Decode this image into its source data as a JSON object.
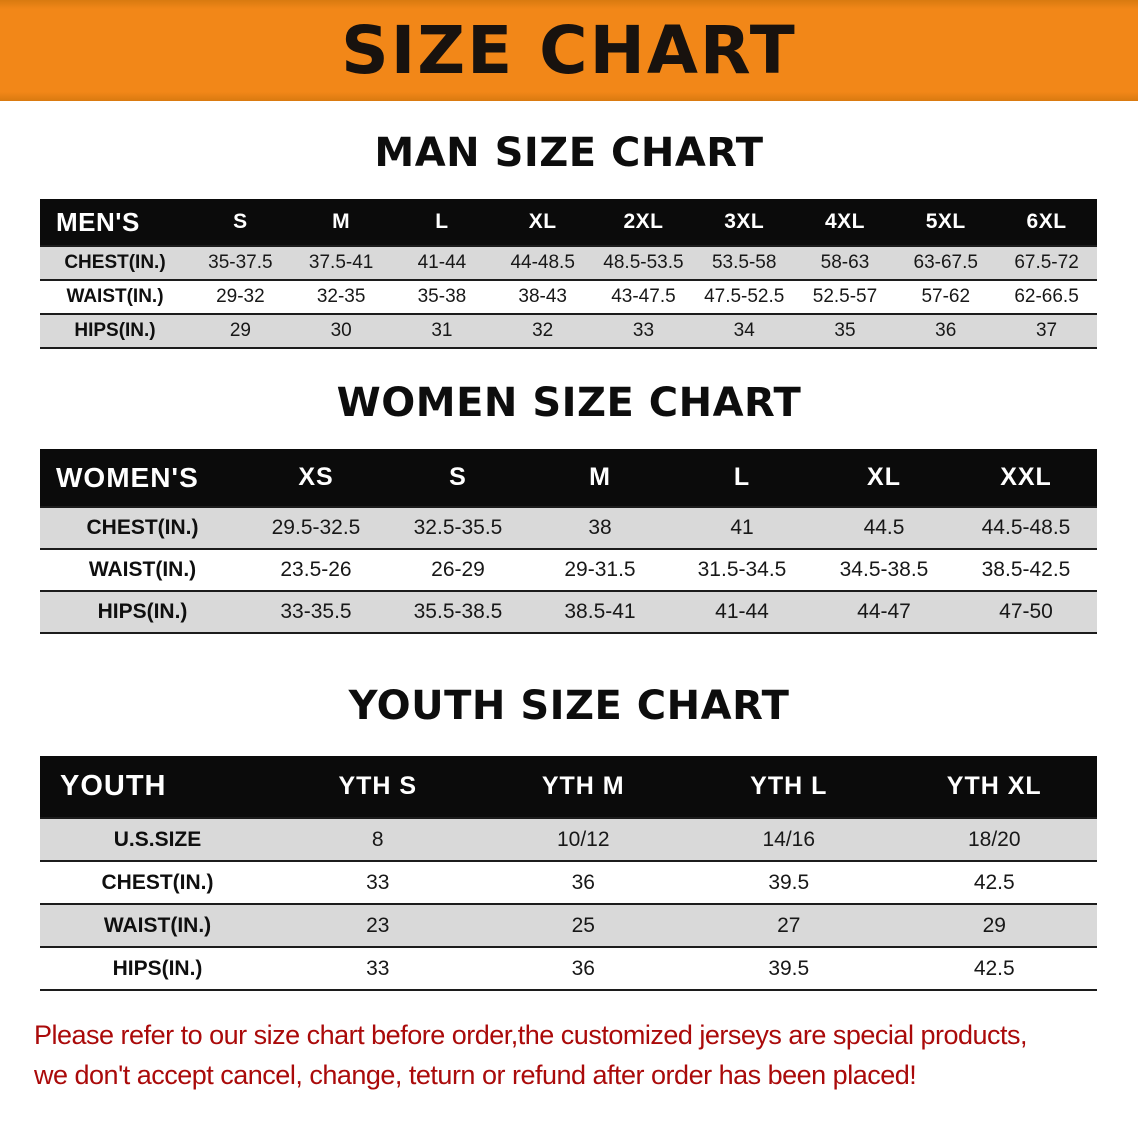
{
  "banner": {
    "title": "SIZE CHART",
    "bg_color": "#F28718",
    "text_color": "#18120E"
  },
  "sections": [
    {
      "id": "men",
      "heading": "MAN SIZE CHART",
      "table": {
        "header": [
          "MEN'S",
          "S",
          "M",
          "L",
          "XL",
          "2XL",
          "3XL",
          "4XL",
          "5XL",
          "6XL"
        ],
        "rows": [
          [
            "CHEST(IN.)",
            "35-37.5",
            "37.5-41",
            "41-44",
            "44-48.5",
            "48.5-53.5",
            "53.5-58",
            "58-63",
            "63-67.5",
            "67.5-72"
          ],
          [
            "WAIST(IN.)",
            "29-32",
            "32-35",
            "35-38",
            "38-43",
            "43-47.5",
            "47.5-52.5",
            "52.5-57",
            "57-62",
            "62-66.5"
          ],
          [
            "HIPS(IN.)",
            "29",
            "30",
            "31",
            "32",
            "33",
            "34",
            "35",
            "36",
            "37"
          ]
        ]
      }
    },
    {
      "id": "women",
      "heading": "WOMEN SIZE CHART",
      "table": {
        "header": [
          "WOMEN'S",
          "XS",
          "S",
          "M",
          "L",
          "XL",
          "XXL"
        ],
        "rows": [
          [
            "CHEST(IN.)",
            "29.5-32.5",
            "32.5-35.5",
            "38",
            "41",
            "44.5",
            "44.5-48.5"
          ],
          [
            "WAIST(IN.)",
            "23.5-26",
            "26-29",
            "29-31.5",
            "31.5-34.5",
            "34.5-38.5",
            "38.5-42.5"
          ],
          [
            "HIPS(IN.)",
            "33-35.5",
            "35.5-38.5",
            "38.5-41",
            "41-44",
            "44-47",
            "47-50"
          ]
        ]
      }
    },
    {
      "id": "youth",
      "heading": "YOUTH SIZE CHART",
      "table": {
        "header": [
          "YOUTH",
          "YTH S",
          "YTH M",
          "YTH L",
          "YTH XL"
        ],
        "rows": [
          [
            "U.S.SIZE",
            "8",
            "10/12",
            "14/16",
            "18/20"
          ],
          [
            "CHEST(IN.)",
            "33",
            "36",
            "39.5",
            "42.5"
          ],
          [
            "WAIST(IN.)",
            "23",
            "25",
            "27",
            "29"
          ],
          [
            "HIPS(IN.)",
            "33",
            "36",
            "39.5",
            "42.5"
          ]
        ]
      }
    }
  ],
  "footer": {
    "text_color": "#AA0A0A",
    "lines": [
      "Please refer to our size chart before order,the customized jerseys are special products,",
      "we don't accept cancel, change, teturn or refund after order has been placed!"
    ]
  }
}
